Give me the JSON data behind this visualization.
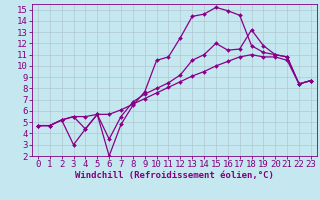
{
  "xlabel": "Windchill (Refroidissement éolien,°C)",
  "xlim": [
    -0.5,
    23.5
  ],
  "ylim": [
    2,
    15.5
  ],
  "xticks": [
    0,
    1,
    2,
    3,
    4,
    5,
    6,
    7,
    8,
    9,
    10,
    11,
    12,
    13,
    14,
    15,
    16,
    17,
    18,
    19,
    20,
    21,
    22,
    23
  ],
  "yticks": [
    2,
    3,
    4,
    5,
    6,
    7,
    8,
    9,
    10,
    11,
    12,
    13,
    14,
    15
  ],
  "background_color": "#c5e8f0",
  "line_color": "#880088",
  "grid_color": "#b0c8d0",
  "line1_x": [
    0,
    1,
    2,
    3,
    4,
    5,
    6,
    7,
    8,
    9,
    10,
    11,
    12,
    13,
    14,
    15,
    16,
    17,
    18,
    19,
    20,
    21,
    22,
    23
  ],
  "line1_y": [
    4.7,
    4.7,
    5.2,
    5.5,
    5.5,
    5.7,
    5.7,
    6.1,
    6.6,
    7.1,
    7.6,
    8.1,
    8.6,
    9.1,
    9.5,
    10.0,
    10.4,
    10.8,
    11.0,
    10.8,
    10.8,
    10.5,
    8.4,
    8.7
  ],
  "line2_x": [
    0,
    1,
    2,
    3,
    4,
    5,
    6,
    7,
    8,
    9,
    10,
    11,
    12,
    13,
    14,
    15,
    16,
    17,
    18,
    19,
    20,
    21,
    22,
    23
  ],
  "line2_y": [
    4.7,
    4.7,
    5.2,
    3.0,
    4.4,
    5.7,
    2.0,
    4.8,
    6.5,
    7.7,
    10.5,
    10.8,
    12.5,
    14.4,
    14.6,
    15.2,
    14.9,
    14.5,
    11.8,
    11.2,
    11.0,
    10.8,
    8.4,
    8.7
  ],
  "line3_x": [
    0,
    1,
    2,
    3,
    4,
    5,
    6,
    7,
    8,
    9,
    10,
    11,
    12,
    13,
    14,
    15,
    16,
    17,
    18,
    19,
    20,
    21,
    22,
    23
  ],
  "line3_y": [
    4.7,
    4.7,
    5.2,
    5.5,
    4.4,
    5.7,
    3.5,
    5.5,
    6.8,
    7.5,
    8.0,
    8.5,
    9.2,
    10.5,
    11.0,
    12.0,
    11.4,
    11.5,
    13.2,
    11.8,
    11.0,
    10.8,
    8.4,
    8.7
  ],
  "fontsize_ticks": 6.5,
  "fontsize_xlabel": 6.5,
  "tick_color": "#800080",
  "label_color": "#800080",
  "marker_size": 2.0,
  "line_width": 0.9
}
